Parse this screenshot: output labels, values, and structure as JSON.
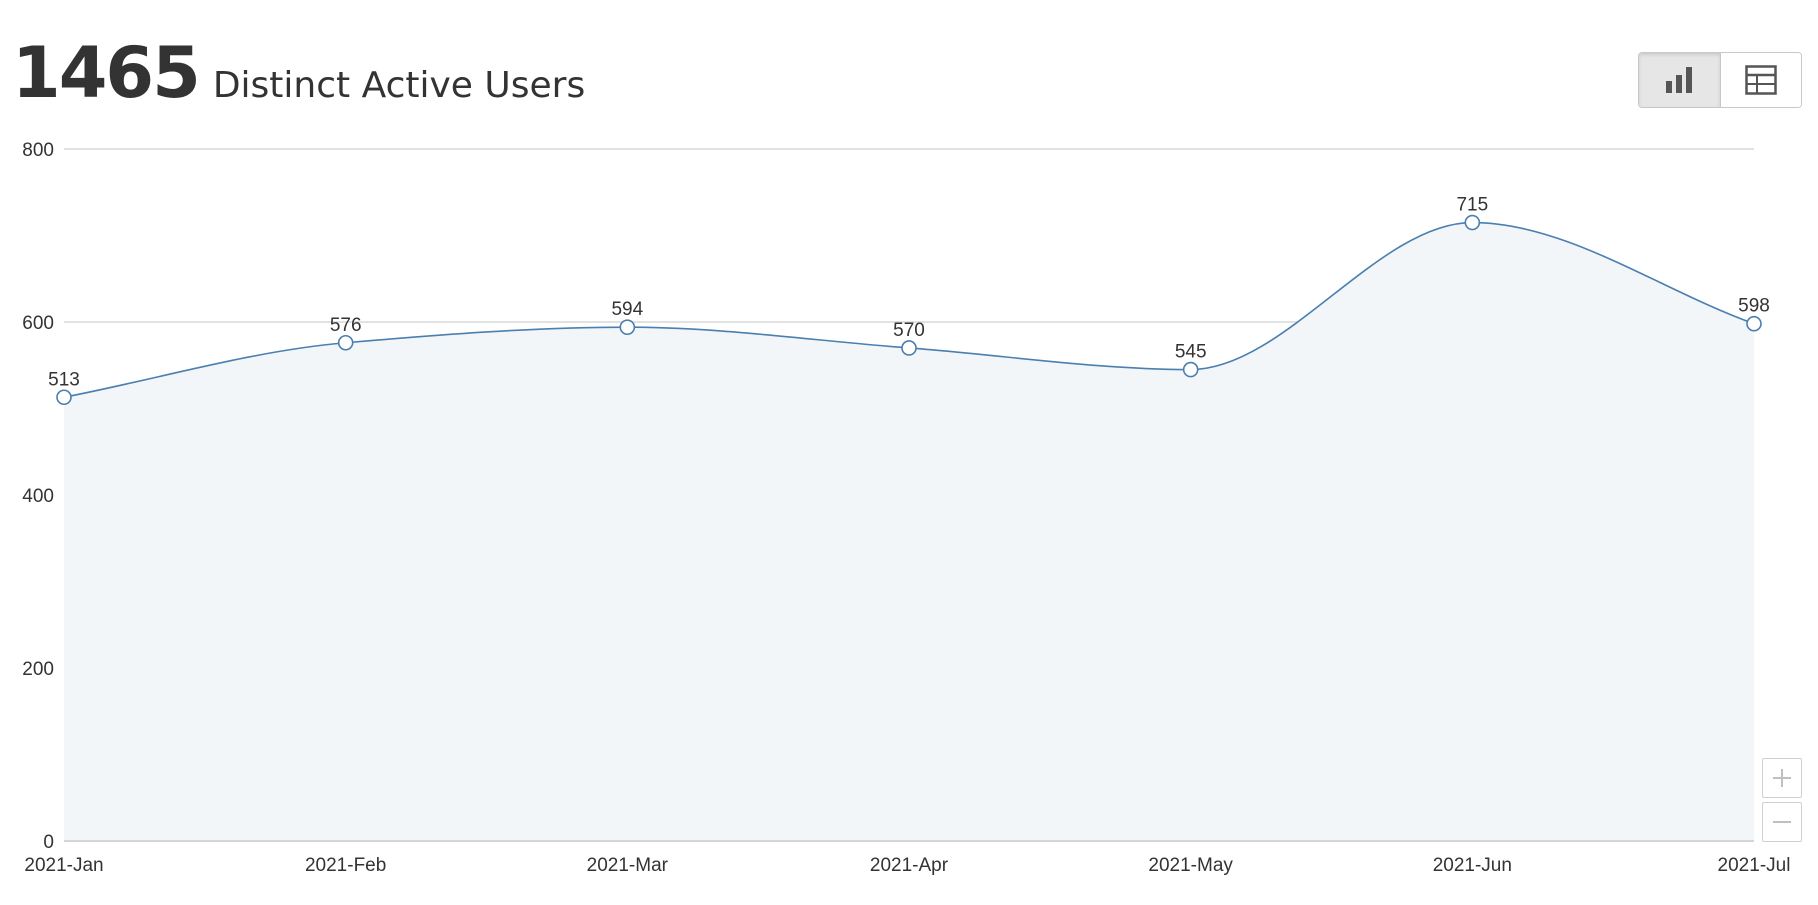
{
  "header": {
    "metric_value": "1465",
    "metric_label": "Distinct Active Users"
  },
  "toolbar": {
    "chart_view_icon": "bar-chart-icon",
    "table_view_icon": "table-icon",
    "active_view": "chart"
  },
  "zoom": {
    "zoom_in_icon": "plus-icon",
    "zoom_out_icon": "minus-icon"
  },
  "colors": {
    "line": "#4a7fb0",
    "area": "#f3f6f9",
    "grid": "#d9d9d9",
    "text": "#333333"
  },
  "chart_data": {
    "type": "area",
    "categories": [
      "2021-Jan",
      "2021-Feb",
      "2021-Mar",
      "2021-Apr",
      "2021-May",
      "2021-Jun",
      "2021-Jul"
    ],
    "values": [
      513,
      576,
      594,
      570,
      545,
      715,
      598
    ],
    "y_ticks": [
      "0",
      "200",
      "400",
      "600",
      "800"
    ],
    "ylim": [
      0,
      800
    ],
    "grid": true,
    "smooth": true,
    "data_labels": true
  }
}
